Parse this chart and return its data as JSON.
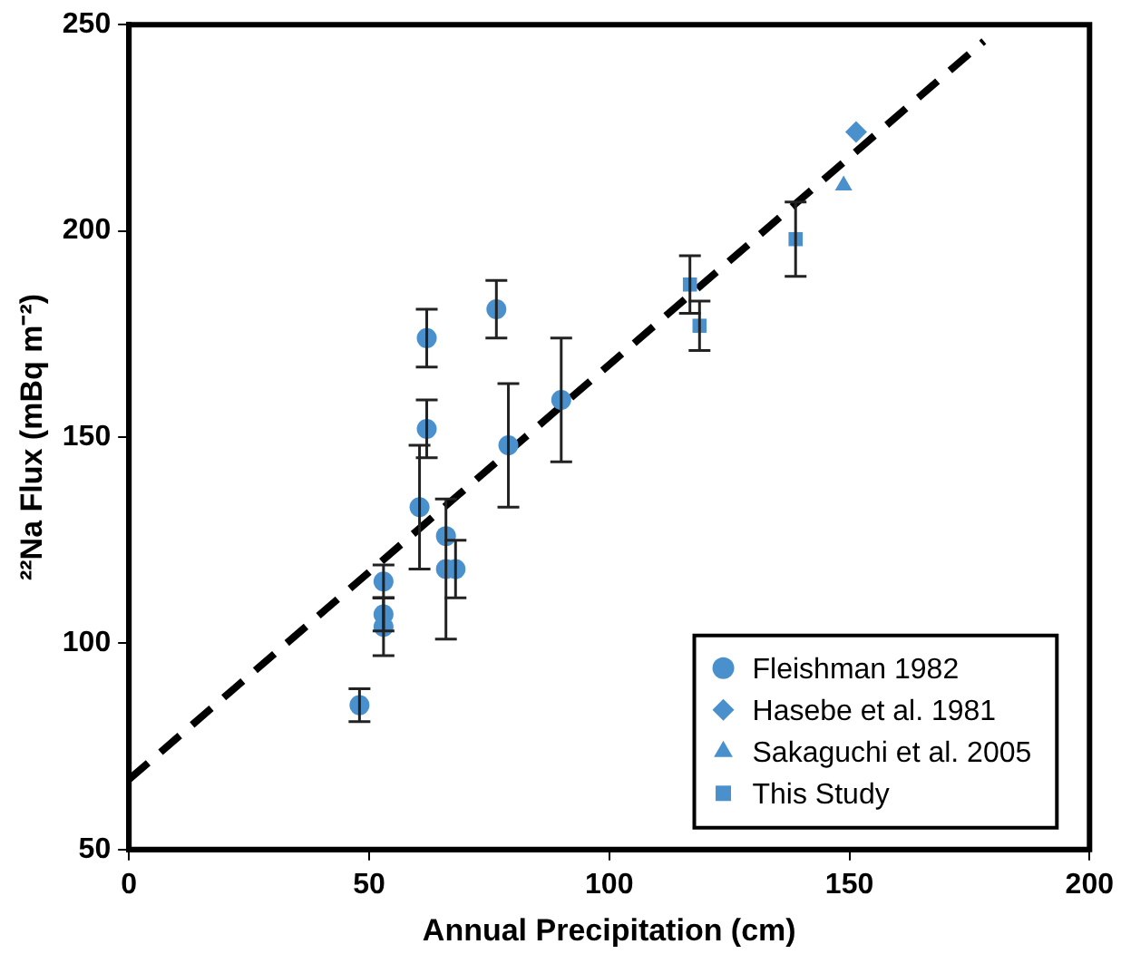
{
  "chart_data": {
    "type": "scatter",
    "xlabel": "Annual Precipitation (cm)",
    "ylabel": "²²Na Flux (mBq m⁻²)",
    "xlim": [
      0,
      200
    ],
    "xticks": [
      0,
      50,
      100,
      150,
      200
    ],
    "ylim": [
      50,
      250
    ],
    "yticks": [
      50,
      100,
      150,
      200,
      250
    ],
    "grid": false,
    "legend": "bottom right",
    "series": [
      {
        "name": "Fleishman 1982",
        "color": "#4a90cd",
        "marker": "circle",
        "x": [
          48,
          53,
          53,
          53,
          60.5,
          62,
          62,
          66,
          66,
          68,
          76.5,
          79,
          90
        ],
        "values": [
          85,
          115,
          107,
          104,
          133,
          174,
          152,
          126,
          118,
          118,
          181,
          148,
          159
        ],
        "errors": [
          4,
          4,
          4,
          [
            97,
            111
          ],
          15,
          7,
          7,
          null,
          17,
          7,
          7,
          15,
          15
        ]
      },
      {
        "name": "Hasebe et al. 1981",
        "color": "#4a90cd",
        "marker": "diamond",
        "x": [
          151.4
        ],
        "values": [
          224
        ]
      },
      {
        "name": "Sakaguchi et al. 2005",
        "color": "#4a90cd",
        "marker": "triangle",
        "x": [
          148.8
        ],
        "values": [
          211
        ]
      },
      {
        "name": "This Study",
        "color": "#4a90cd",
        "marker": "square",
        "x": [
          116.8,
          118.8,
          138.8
        ],
        "values": [
          187,
          177,
          198
        ],
        "errors": [
          7,
          6,
          9
        ]
      },
      {
        "type": "line",
        "color": "#000000",
        "line_style": "dashed",
        "marker": "none",
        "x": [
          0,
          178
        ],
        "values": [
          67,
          246
        ]
      }
    ]
  }
}
